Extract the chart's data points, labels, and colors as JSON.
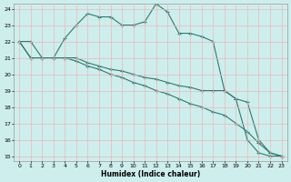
{
  "xlabel": "Humidex (Indice chaleur)",
  "xlim": [
    -0.5,
    23.5
  ],
  "ylim": [
    14.7,
    24.3
  ],
  "yticks": [
    15,
    16,
    17,
    18,
    19,
    20,
    21,
    22,
    23,
    24
  ],
  "xticks": [
    0,
    1,
    2,
    3,
    4,
    5,
    6,
    7,
    8,
    9,
    10,
    11,
    12,
    13,
    14,
    15,
    16,
    17,
    18,
    19,
    20,
    21,
    22,
    23
  ],
  "bg_color": "#ceeeed",
  "line_color": "#2d7b6e",
  "grid_color": "#b8d8d8",
  "line1_x": [
    0,
    1,
    2,
    3,
    4,
    5,
    6,
    7,
    8,
    9,
    10,
    11,
    12,
    13,
    14,
    15,
    16,
    17,
    18,
    19,
    20,
    21,
    22,
    23
  ],
  "line1_y": [
    22.0,
    22.0,
    21.0,
    21.0,
    22.2,
    23.0,
    23.7,
    23.5,
    23.5,
    23.0,
    23.0,
    23.2,
    24.3,
    23.8,
    22.5,
    22.5,
    22.3,
    22.0,
    19.0,
    18.5,
    16.0,
    15.2,
    15.0,
    15.0
  ],
  "line2_x": [
    0,
    1,
    2,
    3,
    4,
    5,
    6,
    7,
    8,
    9,
    10,
    11,
    12,
    13,
    14,
    15,
    16,
    17,
    18,
    19,
    20,
    21,
    22,
    23
  ],
  "line2_y": [
    22.0,
    21.0,
    21.0,
    21.0,
    21.0,
    21.0,
    20.7,
    20.5,
    20.3,
    20.2,
    20.0,
    19.8,
    19.7,
    19.5,
    19.3,
    19.2,
    19.0,
    19.0,
    19.0,
    18.5,
    18.3,
    16.0,
    15.2,
    15.0
  ],
  "line3_x": [
    0,
    1,
    2,
    3,
    4,
    5,
    6,
    7,
    8,
    9,
    10,
    11,
    12,
    13,
    14,
    15,
    16,
    17,
    18,
    19,
    20,
    21,
    22,
    23
  ],
  "line3_y": [
    22.0,
    21.0,
    21.0,
    21.0,
    21.0,
    20.8,
    20.5,
    20.3,
    20.0,
    19.8,
    19.5,
    19.3,
    19.0,
    18.8,
    18.5,
    18.2,
    18.0,
    17.7,
    17.5,
    17.0,
    16.5,
    15.8,
    15.2,
    15.0
  ]
}
